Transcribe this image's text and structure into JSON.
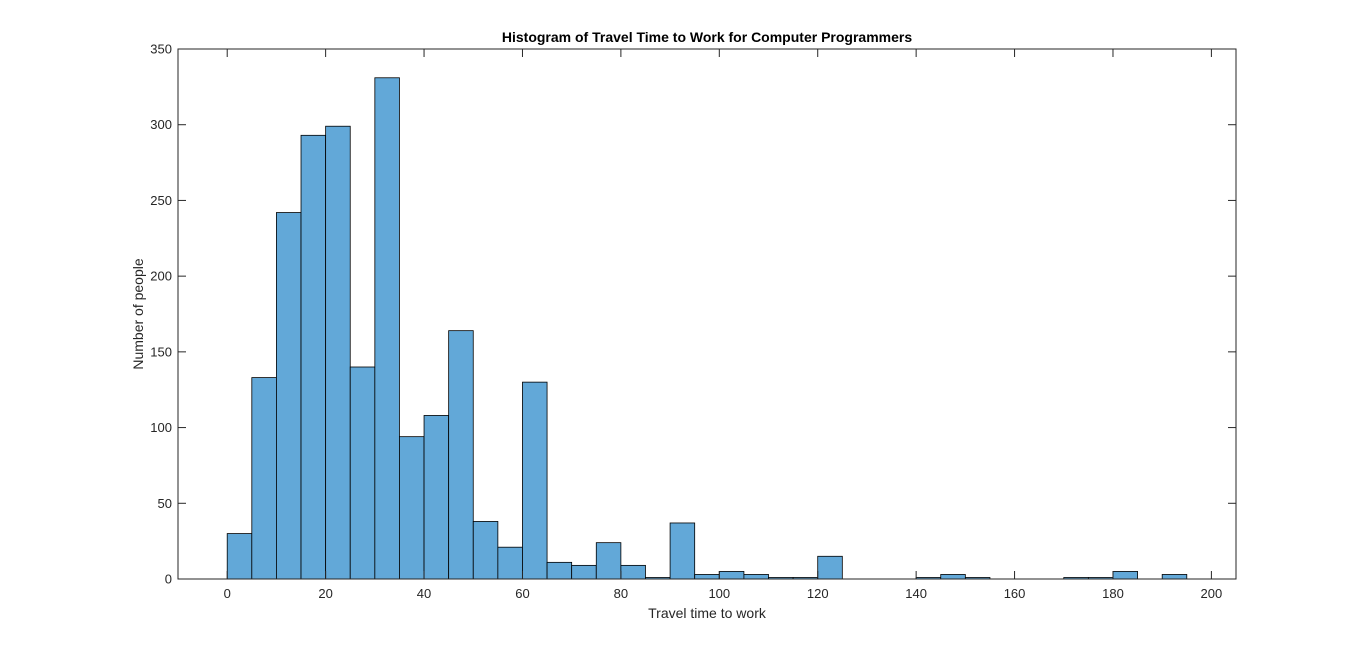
{
  "chart_data": {
    "type": "bar",
    "title": "Histogram of Travel Time to Work for Computer Programmers",
    "xlabel": "Travel time to work",
    "ylabel": "Number of people",
    "xlim": [
      -10,
      205
    ],
    "ylim": [
      0,
      350
    ],
    "xticks": [
      0,
      20,
      40,
      60,
      80,
      100,
      120,
      140,
      160,
      180,
      200
    ],
    "yticks": [
      0,
      50,
      100,
      150,
      200,
      250,
      300,
      350
    ],
    "bin_edges": [
      0,
      5,
      10,
      15,
      20,
      25,
      30,
      35,
      40,
      45,
      50,
      55,
      60,
      65,
      70,
      75,
      80,
      85,
      90,
      95,
      100,
      105,
      110,
      115,
      120,
      125,
      130,
      135,
      140,
      145,
      150,
      155,
      160,
      165,
      170,
      175,
      180,
      185,
      190,
      195
    ],
    "values": [
      30,
      133,
      242,
      293,
      299,
      140,
      331,
      94,
      108,
      164,
      38,
      21,
      130,
      11,
      9,
      24,
      9,
      1,
      37,
      3,
      5,
      3,
      1,
      1,
      15,
      0,
      0,
      0,
      1,
      3,
      1,
      0,
      0,
      0,
      1,
      1,
      5,
      0,
      3
    ],
    "bar_color": "#62a8d8",
    "edge_color": "#000000",
    "grid": false,
    "box": true
  }
}
